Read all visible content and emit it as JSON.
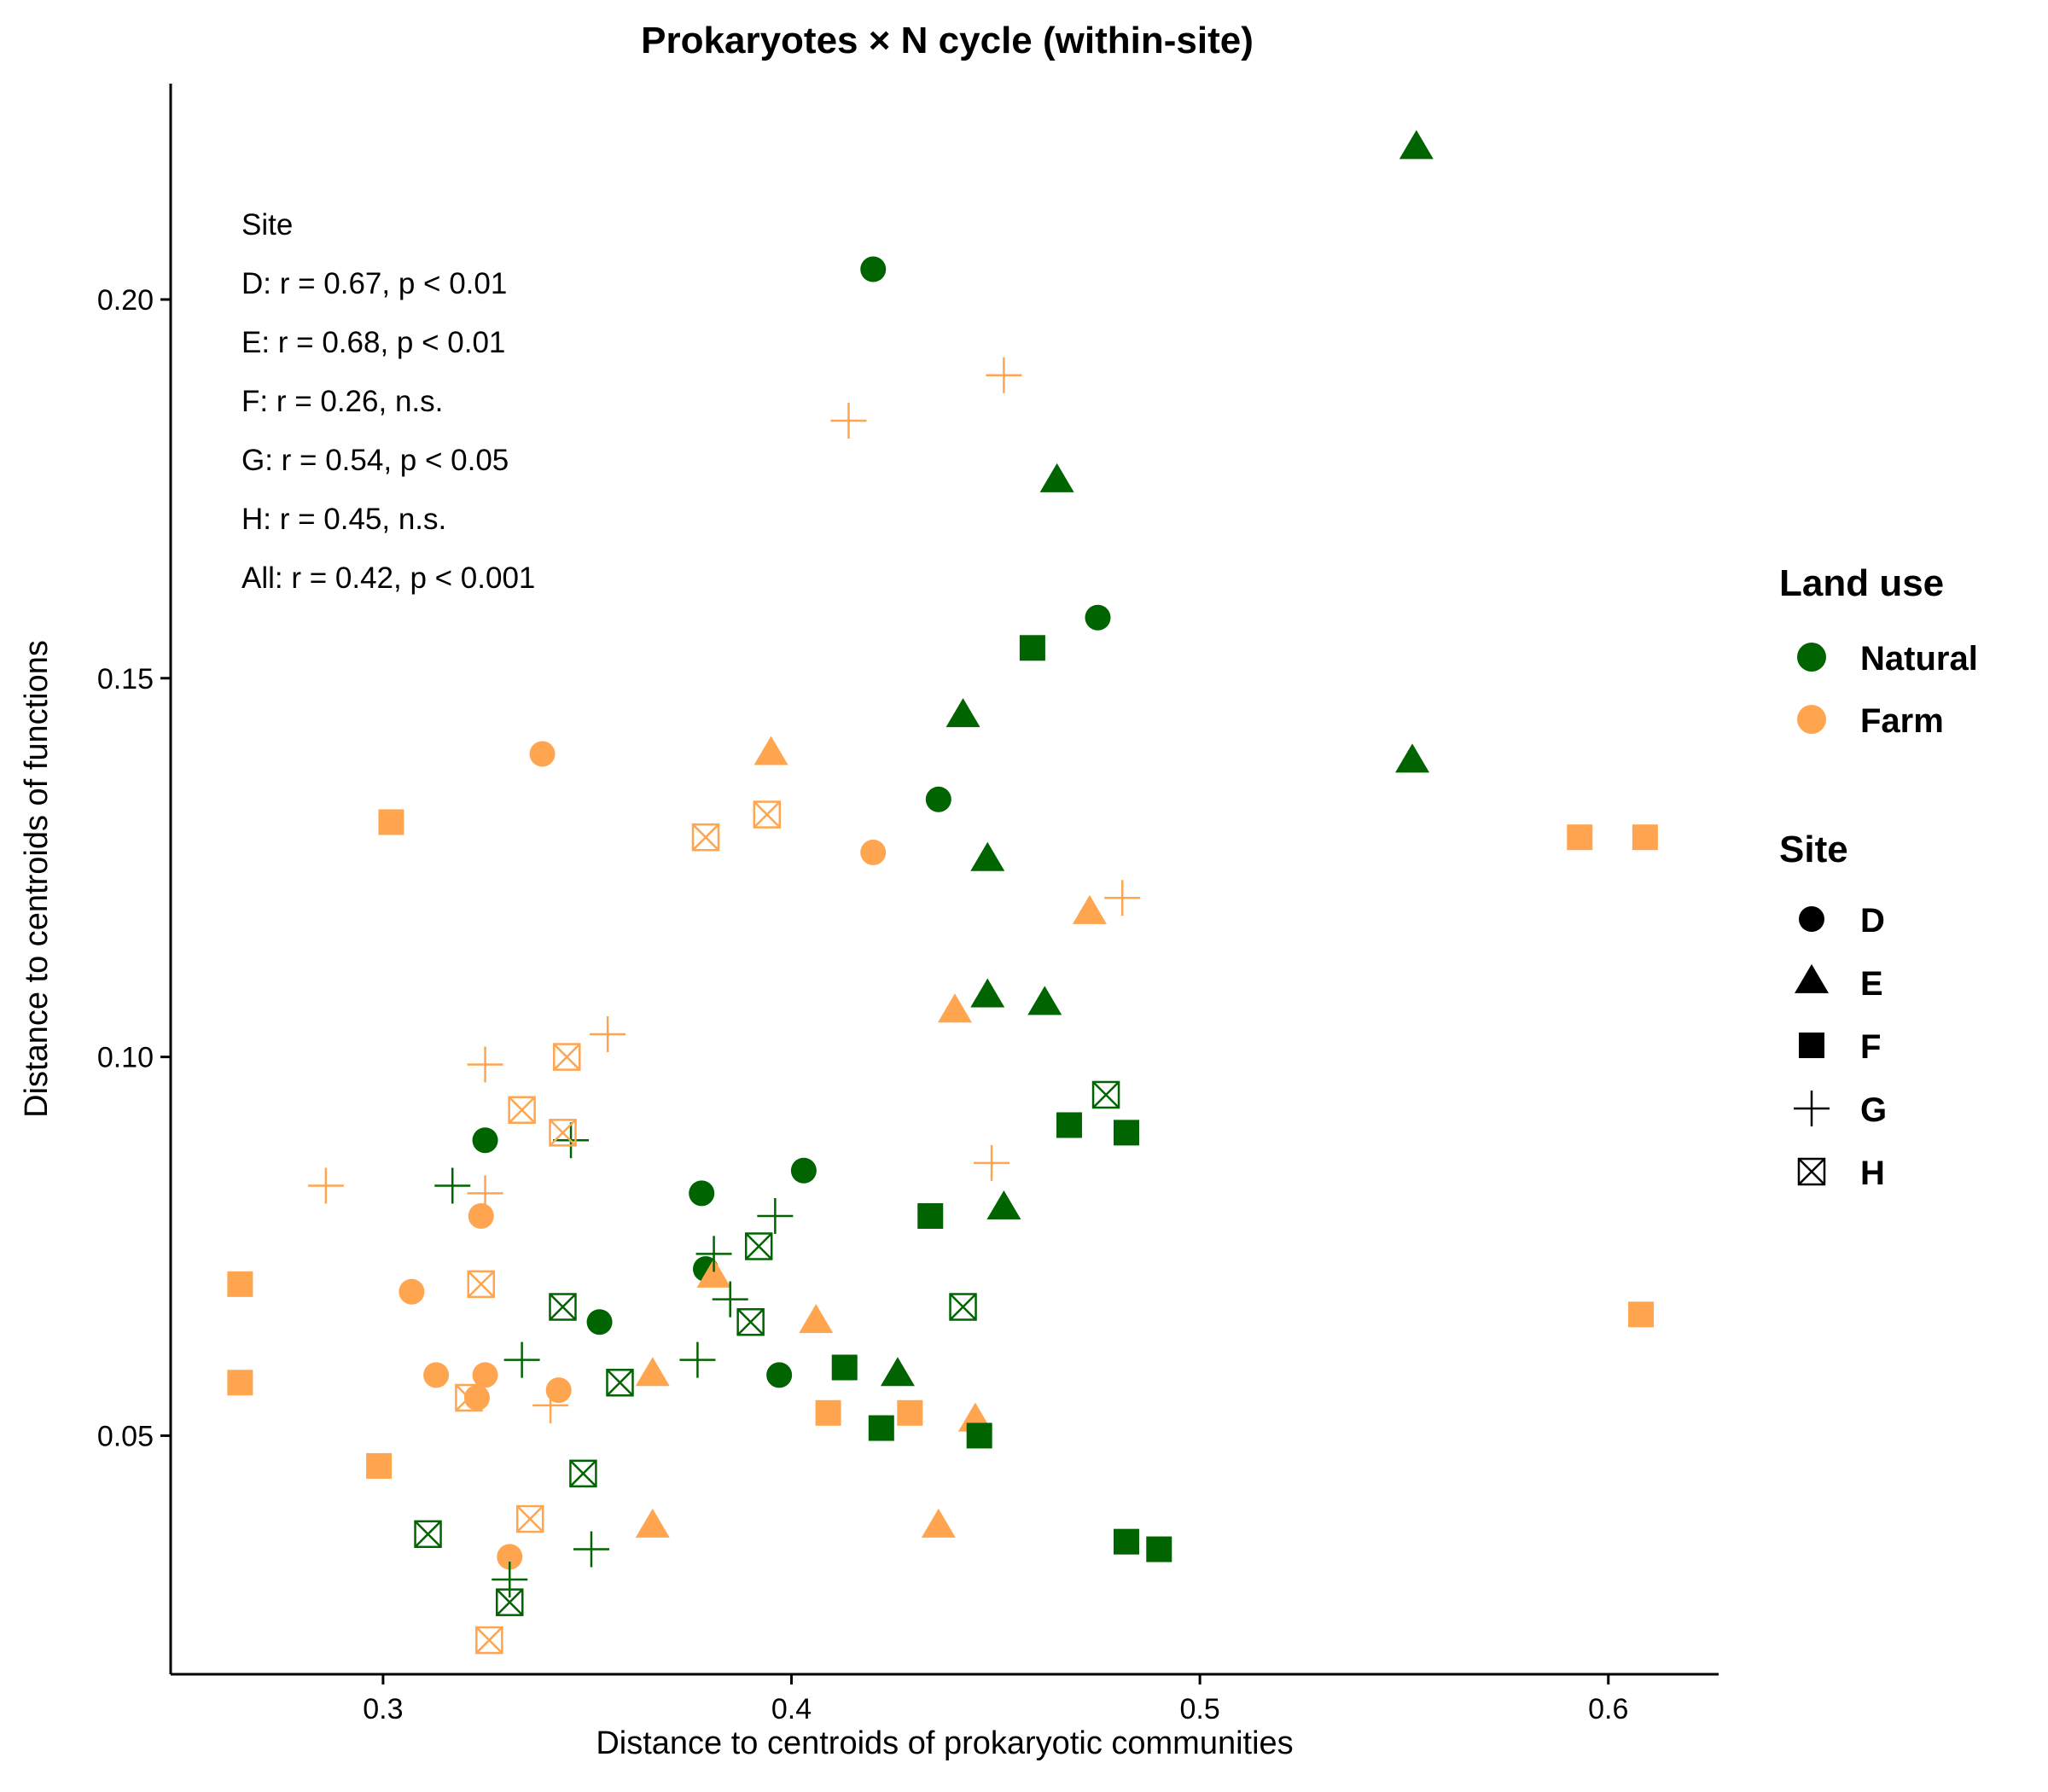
{
  "chart_data": {
    "type": "scatter",
    "title": "Prokaryotes × N cycle (within-site)",
    "xlabel": "Distance to centroids of prokaryotic communities",
    "ylabel": "Distance to centroids of functions",
    "xlim": [
      0.248,
      0.627
    ],
    "ylim": [
      0.0185,
      0.2285
    ],
    "x_ticks": [
      0.3,
      0.4,
      0.5,
      0.6
    ],
    "x_tick_labels": [
      "0.3",
      "0.4",
      "0.5",
      "0.6"
    ],
    "y_ticks": [
      0.05,
      0.1,
      0.15,
      0.2
    ],
    "y_tick_labels": [
      "0.05",
      "0.10",
      "0.15",
      "0.20"
    ],
    "grid": false,
    "colors": {
      "Natural": "#006400",
      "Farm": "#FFA54F"
    },
    "annotation": {
      "title": "Site",
      "lines": [
        "D: r = 0.67, p < 0.01",
        "E: r = 0.68, p < 0.01",
        "F: r = 0.26, n.s.",
        "G: r = 0.54, p < 0.05",
        "H: r = 0.45, n.s.",
        "All: r = 0.42, p < 0.001"
      ]
    },
    "legend": {
      "placement": "right",
      "land_use": {
        "title": "Land use",
        "items": [
          "Natural",
          "Farm"
        ]
      },
      "site": {
        "title": "Site",
        "items": [
          "D",
          "E",
          "F",
          "G",
          "H"
        ]
      }
    },
    "series": [
      {
        "land_use": "Natural",
        "site": "D",
        "points": [
          [
            0.42,
            0.204
          ],
          [
            0.475,
            0.158
          ],
          [
            0.436,
            0.134
          ],
          [
            0.325,
            0.089
          ],
          [
            0.403,
            0.085
          ],
          [
            0.378,
            0.082
          ],
          [
            0.379,
            0.072
          ],
          [
            0.353,
            0.065
          ],
          [
            0.397,
            0.058
          ]
        ]
      },
      {
        "land_use": "Farm",
        "site": "D",
        "points": [
          [
            0.339,
            0.14
          ],
          [
            0.42,
            0.127
          ],
          [
            0.324,
            0.079
          ],
          [
            0.307,
            0.069
          ],
          [
            0.313,
            0.058
          ],
          [
            0.325,
            0.058
          ],
          [
            0.323,
            0.055
          ],
          [
            0.343,
            0.056
          ],
          [
            0.331,
            0.034
          ]
        ]
      },
      {
        "land_use": "Natural",
        "site": "E",
        "points": [
          [
            0.553,
            0.22
          ],
          [
            0.465,
            0.176
          ],
          [
            0.442,
            0.145
          ],
          [
            0.552,
            0.139
          ],
          [
            0.448,
            0.126
          ],
          [
            0.448,
            0.108
          ],
          [
            0.462,
            0.107
          ],
          [
            0.452,
            0.08
          ],
          [
            0.426,
            0.058
          ]
        ]
      },
      {
        "land_use": "Farm",
        "site": "E",
        "points": [
          [
            0.395,
            0.14
          ],
          [
            0.473,
            0.119
          ],
          [
            0.44,
            0.106
          ],
          [
            0.381,
            0.071
          ],
          [
            0.406,
            0.065
          ],
          [
            0.366,
            0.058
          ],
          [
            0.366,
            0.038
          ],
          [
            0.436,
            0.038
          ],
          [
            0.445,
            0.052
          ]
        ]
      },
      {
        "land_use": "Natural",
        "site": "F",
        "points": [
          [
            0.459,
            0.154
          ],
          [
            0.468,
            0.091
          ],
          [
            0.482,
            0.09
          ],
          [
            0.434,
            0.079
          ],
          [
            0.413,
            0.059
          ],
          [
            0.422,
            0.051
          ],
          [
            0.446,
            0.05
          ],
          [
            0.482,
            0.036
          ],
          [
            0.49,
            0.035
          ]
        ]
      },
      {
        "land_use": "Farm",
        "site": "F",
        "points": [
          [
            0.302,
            0.131
          ],
          [
            0.593,
            0.129
          ],
          [
            0.609,
            0.129
          ],
          [
            0.265,
            0.07
          ],
          [
            0.608,
            0.066
          ],
          [
            0.265,
            0.057
          ],
          [
            0.409,
            0.053
          ],
          [
            0.429,
            0.053
          ],
          [
            0.299,
            0.046
          ]
        ]
      },
      {
        "land_use": "Natural",
        "site": "G",
        "points": [
          [
            0.317,
            0.083
          ],
          [
            0.346,
            0.089
          ],
          [
            0.396,
            0.079
          ],
          [
            0.381,
            0.074
          ],
          [
            0.385,
            0.068
          ],
          [
            0.377,
            0.06
          ],
          [
            0.334,
            0.06
          ],
          [
            0.351,
            0.035
          ],
          [
            0.331,
            0.031
          ]
        ]
      },
      {
        "land_use": "Farm",
        "site": "G",
        "points": [
          [
            0.452,
            0.19
          ],
          [
            0.414,
            0.184
          ],
          [
            0.481,
            0.121
          ],
          [
            0.355,
            0.103
          ],
          [
            0.325,
            0.099
          ],
          [
            0.286,
            0.083
          ],
          [
            0.325,
            0.082
          ],
          [
            0.449,
            0.086
          ],
          [
            0.341,
            0.054
          ]
        ]
      },
      {
        "land_use": "Natural",
        "site": "H",
        "points": [
          [
            0.477,
            0.095
          ],
          [
            0.442,
            0.067
          ],
          [
            0.344,
            0.067
          ],
          [
            0.392,
            0.075
          ],
          [
            0.39,
            0.065
          ],
          [
            0.358,
            0.057
          ],
          [
            0.349,
            0.045
          ],
          [
            0.311,
            0.037
          ],
          [
            0.331,
            0.028
          ]
        ]
      },
      {
        "land_use": "Farm",
        "site": "H",
        "points": [
          [
            0.394,
            0.132
          ],
          [
            0.379,
            0.129
          ],
          [
            0.345,
            0.1
          ],
          [
            0.334,
            0.093
          ],
          [
            0.344,
            0.09
          ],
          [
            0.324,
            0.07
          ],
          [
            0.321,
            0.055
          ],
          [
            0.336,
            0.039
          ],
          [
            0.326,
            0.023
          ]
        ]
      }
    ]
  }
}
